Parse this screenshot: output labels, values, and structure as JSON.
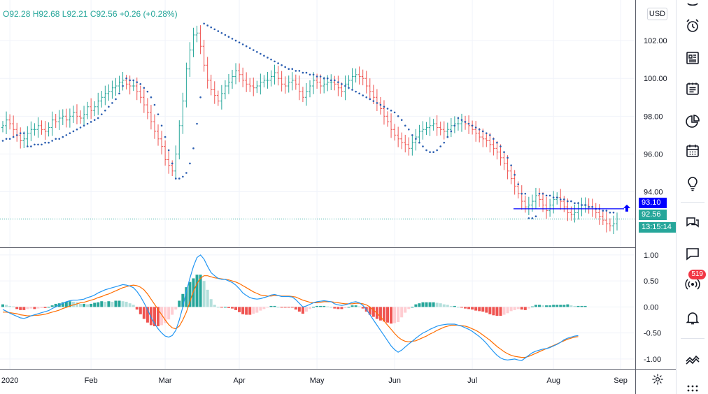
{
  "legend": {
    "open": "O92.28",
    "high": "H92.68",
    "low": "L92.21",
    "close": "C92.56",
    "change": "+0.26 (+0.28%)"
  },
  "currency": "USD",
  "price_tags": {
    "stop_level": "93.10",
    "last_price": "92.56",
    "countdown": "13:15:14"
  },
  "toolbar": {
    "notifications_badge": "519",
    "icons": [
      "watchlist-icon",
      "alarm-clock-icon",
      "news-icon",
      "calendar-notes-icon",
      "pie-chart-icon",
      "calendar-icon",
      "lightbulb-icon",
      "chat-icon",
      "message-icon",
      "broadcast-icon",
      "bell-icon",
      "trend-icon",
      "dots-grid-icon"
    ]
  },
  "colors": {
    "up": "#26a69a",
    "down": "#ef5350",
    "sar": "#2a5db0",
    "macd": "#2196f3",
    "signal": "#ff6d00",
    "hist_up_strong": "#26a69a",
    "hist_up_weak": "#b2dfdb",
    "hist_down_strong": "#ef5350",
    "hist_down_weak": "#ffcdd2",
    "stop_line": "#0000ff"
  },
  "chart_data": {
    "type": "ohlc",
    "title": "",
    "x_ticks": [
      "2020",
      "Feb",
      "Mar",
      "Apr",
      "May",
      "Jun",
      "Jul",
      "Aug",
      "Sep"
    ],
    "x_tick_index": [
      2,
      25,
      46,
      67,
      89,
      111,
      133,
      156,
      175
    ],
    "price_axis": {
      "ticks": [
        "102.00",
        "100.00",
        "98.00",
        "96.00",
        "94.00"
      ],
      "tick_values": [
        102,
        100,
        98,
        96,
        94
      ],
      "range": [
        91.1,
        104.0
      ]
    },
    "closes": [
      97.5,
      97.8,
      97.6,
      97.3,
      97.0,
      96.7,
      96.8,
      97.1,
      97.3,
      97.3,
      97.5,
      97.3,
      97.2,
      97.4,
      97.8,
      97.7,
      97.9,
      98.0,
      97.8,
      98.0,
      98.2,
      98.0,
      97.9,
      98.1,
      98.5,
      98.3,
      98.5,
      98.8,
      99.0,
      99.2,
      99.3,
      99.5,
      99.6,
      99.8,
      99.9,
      99.7,
      99.6,
      99.6,
      99.3,
      99.0,
      98.6,
      98.2,
      97.7,
      97.2,
      96.8,
      96.4,
      95.7,
      95.4,
      95.1,
      96.0,
      97.5,
      98.8,
      100.5,
      101.5,
      102.3,
      102.4,
      101.7,
      100.7,
      99.9,
      99.4,
      99.1,
      98.8,
      99.2,
      99.6,
      99.8,
      100.1,
      100.4,
      100.2,
      99.9,
      99.7,
      99.6,
      99.5,
      99.6,
      99.8,
      99.9,
      99.9,
      100.1,
      100.3,
      100.0,
      99.7,
      99.6,
      99.8,
      99.9,
      99.7,
      99.3,
      99.0,
      99.3,
      99.6,
      99.9,
      99.8,
      99.6,
      99.7,
      99.8,
      99.8,
      99.7,
      99.5,
      99.3,
      99.7,
      99.9,
      100.1,
      100.2,
      100.1,
      100.0,
      99.6,
      99.3,
      99.0,
      98.7,
      98.4,
      98.0,
      97.7,
      97.3,
      97.0,
      96.8,
      96.6,
      96.5,
      96.3,
      96.6,
      96.9,
      97.2,
      97.3,
      97.4,
      97.5,
      97.6,
      97.4,
      97.3,
      97.2,
      97.3,
      97.5,
      97.6,
      97.6,
      97.7,
      97.6,
      97.5,
      97.3,
      97.1,
      96.9,
      96.8,
      96.7,
      96.5,
      96.3,
      96.1,
      95.8,
      95.5,
      95.1,
      94.7,
      94.3,
      93.9,
      93.5,
      93.2,
      93.3,
      93.5,
      93.8,
      93.6,
      93.3,
      93.0,
      93.3,
      93.6,
      93.7,
      93.5,
      93.2,
      92.9,
      92.8,
      92.9,
      93.1,
      93.3,
      93.3,
      93.2,
      93.1,
      92.9,
      92.7,
      92.5,
      92.3,
      92.2,
      92.3,
      92.56
    ],
    "parabolic_sar": [
      96.7,
      96.8,
      96.8,
      96.9,
      97.0,
      97.1,
      97.1,
      96.4,
      96.4,
      96.5,
      96.5,
      96.5,
      96.6,
      96.6,
      96.7,
      96.8,
      96.8,
      96.9,
      97.0,
      97.1,
      97.2,
      97.3,
      97.4,
      97.5,
      97.6,
      97.7,
      97.8,
      97.9,
      98.1,
      98.3,
      98.5,
      98.7,
      98.9,
      99.2,
      99.6,
      100.0,
      99.9,
      99.9,
      99.8,
      99.7,
      99.5,
      99.3,
      99.0,
      98.6,
      98.1,
      97.5,
      96.9,
      96.2,
      95.5,
      94.7,
      94.7,
      94.8,
      95.0,
      95.5,
      96.3,
      97.6,
      99.0,
      102.9,
      102.8,
      102.7,
      102.6,
      102.5,
      102.4,
      102.3,
      102.2,
      102.1,
      102.0,
      101.9,
      101.8,
      101.7,
      101.6,
      101.5,
      101.4,
      101.3,
      101.2,
      101.1,
      101.0,
      100.9,
      100.8,
      100.7,
      100.6,
      100.5,
      100.5,
      100.4,
      100.4,
      100.3,
      100.3,
      100.2,
      100.2,
      100.1,
      100.1,
      100.0,
      100.0,
      99.9,
      99.9,
      99.8,
      99.7,
      99.6,
      99.5,
      99.4,
      99.3,
      99.2,
      99.1,
      99.0,
      98.9,
      98.8,
      98.7,
      98.6,
      98.5,
      98.4,
      98.3,
      98.2,
      98.0,
      97.8,
      97.5,
      97.3,
      97.0,
      96.8,
      96.6,
      96.4,
      96.2,
      96.1,
      96.1,
      96.2,
      96.4,
      96.6,
      96.9,
      97.2,
      97.5,
      97.9,
      97.8,
      97.7,
      97.6,
      97.5,
      97.4,
      97.3,
      97.2,
      97.1,
      97.0,
      96.8,
      96.6,
      96.4,
      96.1,
      95.8,
      95.4,
      94.9,
      94.4,
      93.9,
      93.9,
      92.6,
      92.6,
      92.7,
      93.9,
      93.9,
      93.8,
      93.8,
      93.7,
      93.7,
      93.6,
      93.6,
      93.5,
      93.5,
      93.4,
      93.4,
      93.3,
      93.3,
      93.2,
      93.2,
      93.1,
      93.1,
      93.0,
      93.0,
      92.9,
      92.9
    ],
    "stop_level": 93.1,
    "macd_axis": {
      "ticks": [
        "1.00",
        "0.50",
        "0.00",
        "-0.50",
        "-1.00"
      ],
      "tick_values": [
        1.0,
        0.5,
        0.0,
        -0.5,
        -1.0
      ],
      "range": [
        -1.19,
        1.12
      ]
    },
    "macd": [
      -0.05,
      -0.08,
      -0.12,
      -0.15,
      -0.18,
      -0.21,
      -0.22,
      -0.2,
      -0.17,
      -0.15,
      -0.13,
      -0.11,
      -0.09,
      -0.07,
      -0.03,
      0.0,
      0.04,
      0.07,
      0.1,
      0.12,
      0.13,
      0.13,
      0.14,
      0.15,
      0.18,
      0.2,
      0.23,
      0.27,
      0.3,
      0.33,
      0.35,
      0.37,
      0.39,
      0.41,
      0.43,
      0.42,
      0.4,
      0.37,
      0.3,
      0.2,
      0.08,
      -0.05,
      -0.2,
      -0.32,
      -0.42,
      -0.5,
      -0.56,
      -0.58,
      -0.55,
      -0.45,
      -0.25,
      0.0,
      0.3,
      0.55,
      0.78,
      0.95,
      1.0,
      0.92,
      0.78,
      0.66,
      0.6,
      0.55,
      0.53,
      0.53,
      0.5,
      0.47,
      0.42,
      0.35,
      0.27,
      0.22,
      0.18,
      0.16,
      0.15,
      0.16,
      0.18,
      0.2,
      0.23,
      0.24,
      0.22,
      0.2,
      0.2,
      0.2,
      0.19,
      0.14,
      0.07,
      0.0,
      0.02,
      0.05,
      0.08,
      0.1,
      0.11,
      0.12,
      0.11,
      0.1,
      0.06,
      0.04,
      0.03,
      0.04,
      0.06,
      0.09,
      0.1,
      0.08,
      0.03,
      -0.05,
      -0.15,
      -0.25,
      -0.35,
      -0.45,
      -0.55,
      -0.65,
      -0.75,
      -0.82,
      -0.87,
      -0.83,
      -0.77,
      -0.71,
      -0.66,
      -0.6,
      -0.55,
      -0.5,
      -0.47,
      -0.43,
      -0.4,
      -0.37,
      -0.35,
      -0.34,
      -0.33,
      -0.33,
      -0.33,
      -0.35,
      -0.37,
      -0.4,
      -0.43,
      -0.47,
      -0.52,
      -0.57,
      -0.63,
      -0.7,
      -0.78,
      -0.86,
      -0.93,
      -0.98,
      -1.01,
      -1.02,
      -1.01,
      -1.0,
      -1.02,
      -1.03,
      -0.98,
      -0.93,
      -0.88,
      -0.85,
      -0.83,
      -0.81,
      -0.8,
      -0.78,
      -0.75,
      -0.72,
      -0.68,
      -0.63,
      -0.6,
      -0.58,
      -0.56,
      -0.55
    ],
    "signal": [
      -0.1,
      -0.1,
      -0.11,
      -0.12,
      -0.13,
      -0.15,
      -0.16,
      -0.17,
      -0.17,
      -0.16,
      -0.16,
      -0.15,
      -0.14,
      -0.12,
      -0.1,
      -0.08,
      -0.06,
      -0.03,
      -0.01,
      0.02,
      0.04,
      0.06,
      0.08,
      0.09,
      0.11,
      0.13,
      0.15,
      0.18,
      0.2,
      0.23,
      0.25,
      0.28,
      0.31,
      0.34,
      0.37,
      0.39,
      0.41,
      0.42,
      0.41,
      0.38,
      0.33,
      0.25,
      0.15,
      0.05,
      -0.05,
      -0.15,
      -0.25,
      -0.34,
      -0.4,
      -0.42,
      -0.37,
      -0.25,
      -0.1,
      0.1,
      0.3,
      0.45,
      0.55,
      0.6,
      0.6,
      0.58,
      0.56,
      0.55,
      0.54,
      0.53,
      0.52,
      0.5,
      0.48,
      0.45,
      0.41,
      0.37,
      0.33,
      0.29,
      0.26,
      0.23,
      0.22,
      0.21,
      0.21,
      0.22,
      0.22,
      0.21,
      0.21,
      0.21,
      0.2,
      0.19,
      0.16,
      0.13,
      0.11,
      0.09,
      0.08,
      0.08,
      0.09,
      0.1,
      0.1,
      0.1,
      0.09,
      0.08,
      0.07,
      0.06,
      0.06,
      0.06,
      0.07,
      0.07,
      0.06,
      0.04,
      0.0,
      -0.06,
      -0.12,
      -0.19,
      -0.27,
      -0.35,
      -0.43,
      -0.51,
      -0.58,
      -0.63,
      -0.66,
      -0.67,
      -0.66,
      -0.65,
      -0.62,
      -0.59,
      -0.56,
      -0.52,
      -0.49,
      -0.45,
      -0.42,
      -0.39,
      -0.37,
      -0.35,
      -0.35,
      -0.35,
      -0.36,
      -0.37,
      -0.39,
      -0.42,
      -0.45,
      -0.49,
      -0.54,
      -0.59,
      -0.64,
      -0.7,
      -0.76,
      -0.81,
      -0.86,
      -0.9,
      -0.93,
      -0.95,
      -0.96,
      -0.97,
      -0.97,
      -0.95,
      -0.92,
      -0.89,
      -0.86,
      -0.83,
      -0.8,
      -0.77,
      -0.74,
      -0.71,
      -0.68,
      -0.65,
      -0.62,
      -0.6,
      -0.58,
      -0.57
    ],
    "histogram": [
      0.05,
      0.04,
      0.02,
      0.01,
      -0.04,
      -0.06,
      -0.06,
      -0.04,
      -0.03,
      -0.04,
      -0.03,
      -0.02,
      -0.02,
      0.0,
      0.03,
      0.06,
      0.07,
      0.09,
      0.1,
      0.11,
      0.1,
      0.09,
      0.06,
      0.06,
      0.05,
      0.06,
      0.08,
      0.09,
      0.11,
      0.1,
      0.11,
      0.1,
      0.12,
      0.12,
      0.11,
      0.1,
      0.07,
      0.04,
      -0.05,
      -0.14,
      -0.23,
      -0.3,
      -0.35,
      -0.37,
      -0.37,
      -0.35,
      -0.31,
      -0.24,
      -0.15,
      -0.05,
      0.12,
      0.25,
      0.38,
      0.48,
      0.55,
      0.62,
      0.62,
      0.5,
      0.33,
      0.15,
      0.04,
      0.0,
      -0.01,
      0.0,
      -0.02,
      -0.03,
      -0.06,
      -0.1,
      -0.14,
      -0.15,
      -0.15,
      -0.13,
      -0.11,
      -0.07,
      -0.04,
      -0.01,
      0.02,
      0.02,
      0.0,
      -0.01,
      -0.01,
      -0.01,
      -0.01,
      -0.05,
      -0.09,
      -0.13,
      -0.09,
      -0.04,
      0.0,
      0.02,
      0.02,
      0.02,
      0.01,
      0.0,
      -0.03,
      -0.04,
      -0.04,
      -0.02,
      0.0,
      0.03,
      0.03,
      0.01,
      -0.03,
      -0.09,
      -0.15,
      -0.19,
      -0.23,
      -0.26,
      -0.28,
      -0.3,
      -0.32,
      -0.31,
      -0.29,
      -0.2,
      -0.11,
      -0.04,
      0.0,
      0.05,
      0.07,
      0.09,
      0.09,
      0.09,
      0.09,
      0.08,
      0.07,
      0.05,
      0.04,
      0.02,
      0.02,
      0.0,
      -0.01,
      -0.03,
      -0.04,
      -0.05,
      -0.07,
      -0.08,
      -0.09,
      -0.11,
      -0.14,
      -0.16,
      -0.17,
      -0.17,
      -0.15,
      -0.12,
      -0.08,
      -0.06,
      -0.04,
      -0.05,
      -0.06,
      -0.03,
      0.01,
      0.04,
      0.04,
      0.03,
      0.03,
      0.03,
      0.04,
      0.04,
      0.04,
      0.04,
      0.05,
      0.03,
      0.02,
      0.02,
      0.02,
      0.02
    ]
  }
}
